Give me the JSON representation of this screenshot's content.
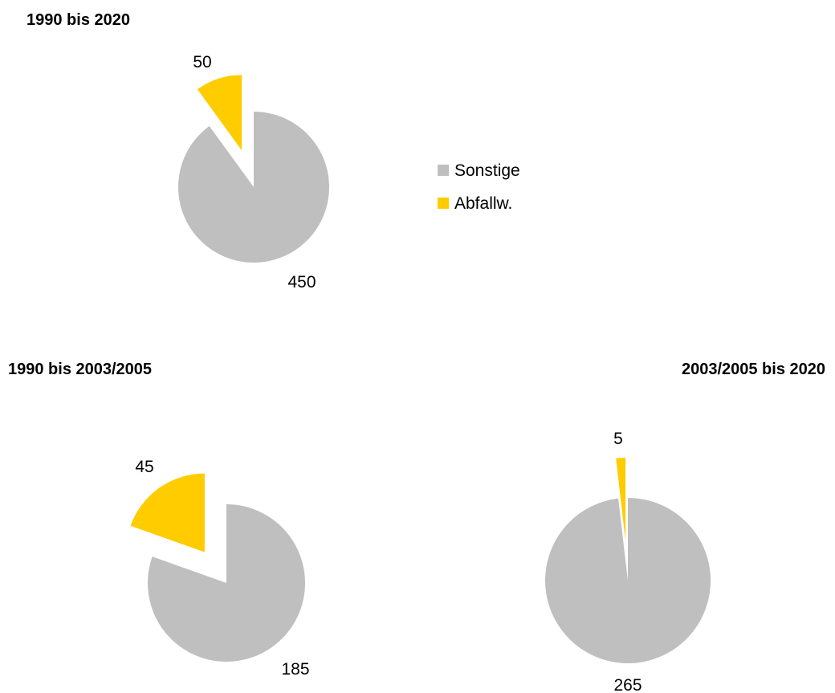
{
  "chart_data": [
    {
      "type": "pie",
      "title": "1990 bis 2020",
      "categories": [
        "Sonstige",
        "Abfallw."
      ],
      "values": [
        450,
        50
      ],
      "colors": [
        "#BFBFBF",
        "#FFCC00"
      ],
      "exploded": "Abfallw.",
      "legend": {
        "position": "right",
        "entries": [
          "Sonstige",
          "Abfallw."
        ]
      }
    },
    {
      "type": "pie",
      "title": "1990 bis 2003/2005",
      "categories": [
        "Sonstige",
        "Abfallw."
      ],
      "values": [
        185,
        45
      ],
      "colors": [
        "#BFBFBF",
        "#FFCC00"
      ],
      "exploded": "Abfallw."
    },
    {
      "type": "pie",
      "title": "2003/2005 bis 2020",
      "categories": [
        "Sonstige",
        "Abfallw."
      ],
      "values": [
        265,
        5
      ],
      "colors": [
        "#BFBFBF",
        "#FFCC00"
      ],
      "exploded": "Abfallw."
    }
  ]
}
